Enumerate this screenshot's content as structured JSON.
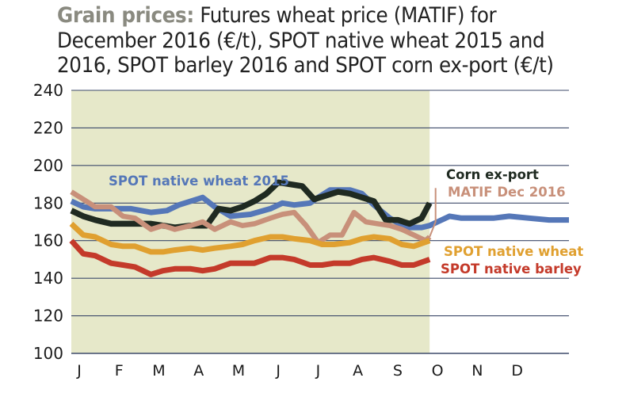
{
  "chart_data": {
    "type": "line",
    "title_lead": "Grain prices:",
    "title": "Futures wheat price (MATIF) for December 2016 (€/t), SPOT native wheat 2015 and 2016, SPOT barley 2016 and SPOT corn ex-port (€/t)",
    "xlabel": "",
    "ylabel": "",
    "ylim": [
      100,
      240
    ],
    "yticks": [
      100,
      120,
      140,
      160,
      180,
      200,
      220,
      240
    ],
    "xlim": [
      0,
      12.5
    ],
    "x_categories": [
      "J",
      "F",
      "M",
      "A",
      "M",
      "J",
      "J",
      "A",
      "S",
      "O",
      "N",
      "D"
    ],
    "grid": "horizontal",
    "shaded_region": [
      0,
      9
    ],
    "colors": {
      "shade": "#e6e8c9",
      "wheat2015": "#5577b8",
      "corn": "#1f2a21",
      "matif": "#c8907a",
      "wheat2016": "#e0a030",
      "barley": "#c43a2a"
    },
    "series": [
      {
        "name": "SPOT native wheat 2015",
        "color_key": "wheat2015",
        "x": [
          0,
          0.3,
          0.6,
          1.0,
          1.5,
          2.0,
          2.4,
          2.7,
          3.0,
          3.3,
          3.6,
          4.0,
          4.5,
          5.0,
          5.3,
          5.6,
          6.0,
          6.2,
          6.5,
          7.0,
          7.3,
          7.6,
          8.0,
          8.4,
          8.8,
          9.0,
          9.2,
          9.5,
          9.8,
          10.2,
          10.6,
          11.0,
          11.5,
          12.0,
          12.5
        ],
        "y": [
          181,
          178,
          177,
          177,
          177,
          175,
          176,
          179,
          181,
          183,
          178,
          173,
          174,
          177,
          180,
          179,
          180,
          183,
          187,
          187,
          185,
          179,
          172,
          167,
          167,
          168,
          170,
          173,
          172,
          172,
          172,
          173,
          172,
          171,
          171
        ]
      },
      {
        "name": "Corn ex-port",
        "color_key": "corn",
        "x": [
          0,
          0.3,
          0.6,
          1.0,
          1.5,
          2.0,
          2.3,
          2.6,
          3.0,
          3.4,
          3.7,
          4.0,
          4.3,
          4.6,
          4.9,
          5.2,
          5.5,
          5.8,
          6.1,
          6.4,
          6.7,
          7.0,
          7.3,
          7.6,
          7.9,
          8.2,
          8.5,
          8.8,
          9.0
        ],
        "y": [
          176,
          173,
          171,
          169,
          169,
          169,
          168,
          167,
          168,
          168,
          177,
          176,
          178,
          181,
          185,
          191,
          190,
          189,
          182,
          184,
          186,
          185,
          183,
          181,
          171,
          171,
          169,
          172,
          180
        ]
      },
      {
        "name": "MATIF Dec 2016",
        "color_key": "matif",
        "x": [
          0,
          0.3,
          0.6,
          1.0,
          1.3,
          1.6,
          2.0,
          2.3,
          2.6,
          3.0,
          3.3,
          3.6,
          4.0,
          4.3,
          4.6,
          5.0,
          5.3,
          5.6,
          5.9,
          6.2,
          6.5,
          6.8,
          7.1,
          7.4,
          7.7,
          8.0,
          8.3,
          8.6,
          8.9,
          9.0
        ],
        "y": [
          186,
          182,
          178,
          178,
          173,
          172,
          166,
          168,
          166,
          168,
          170,
          166,
          170,
          168,
          169,
          172,
          174,
          175,
          168,
          159,
          163,
          163,
          175,
          170,
          169,
          168,
          166,
          163,
          160,
          162
        ]
      },
      {
        "name": "SPOT native wheat",
        "color_key": "wheat2016",
        "x": [
          0,
          0.3,
          0.6,
          1.0,
          1.3,
          1.6,
          2.0,
          2.3,
          2.6,
          3.0,
          3.3,
          3.6,
          4.0,
          4.3,
          4.6,
          5.0,
          5.3,
          5.6,
          6.0,
          6.3,
          6.6,
          7.0,
          7.3,
          7.6,
          8.0,
          8.3,
          8.6,
          9.0
        ],
        "y": [
          169,
          163,
          162,
          158,
          157,
          157,
          154,
          154,
          155,
          156,
          155,
          156,
          157,
          158,
          160,
          162,
          162,
          161,
          160,
          158,
          158,
          159,
          161,
          162,
          161,
          158,
          157,
          160
        ]
      },
      {
        "name": "SPOT native barley",
        "color_key": "barley",
        "x": [
          0,
          0.3,
          0.6,
          1.0,
          1.3,
          1.6,
          2.0,
          2.3,
          2.6,
          3.0,
          3.3,
          3.6,
          4.0,
          4.3,
          4.6,
          5.0,
          5.3,
          5.6,
          6.0,
          6.3,
          6.6,
          7.0,
          7.3,
          7.6,
          8.0,
          8.3,
          8.6,
          9.0
        ],
        "y": [
          160,
          153,
          152,
          148,
          147,
          146,
          142,
          144,
          145,
          145,
          144,
          145,
          148,
          148,
          148,
          151,
          151,
          150,
          147,
          147,
          148,
          148,
          150,
          151,
          149,
          147,
          147,
          150
        ]
      }
    ],
    "labels": [
      {
        "text": "SPOT native wheat 2015",
        "color_key": "wheat2015"
      },
      {
        "text": "Corn ex-port",
        "color_key": "corn"
      },
      {
        "text": "MATIF Dec 2016",
        "color_key": "matif"
      },
      {
        "text": "SPOT native wheat",
        "color_key": "wheat2016"
      },
      {
        "text": "SPOT native barley",
        "color_key": "barley"
      }
    ]
  }
}
